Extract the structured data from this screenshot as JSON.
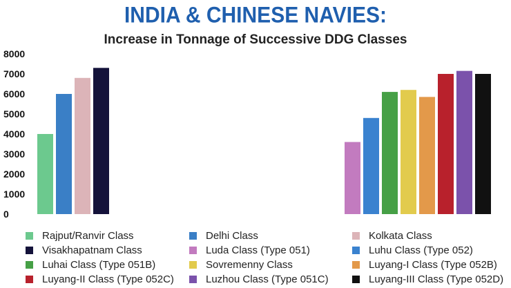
{
  "title": "INDIA & CHINESE NAVIES:",
  "subtitle": "Increase in Tonnage of Successive DDG Classes",
  "chart_data": {
    "type": "bar",
    "title": "INDIA & CHINESE NAVIES:",
    "subtitle": "Increase in Tonnage of Successive DDG Classes",
    "xlabel": "",
    "ylabel": "",
    "ylim": [
      0,
      8000
    ],
    "yticks": [
      0,
      1000,
      2000,
      3000,
      4000,
      5000,
      6000,
      7000,
      8000
    ],
    "grid": false,
    "legend_position": "bottom",
    "groups": [
      {
        "series": [
          {
            "name": "Rajput/Ranvir Class",
            "value": 4000,
            "color": "#6cc98e"
          },
          {
            "name": "Delhi Class",
            "value": 6000,
            "color": "#3a7fc6"
          },
          {
            "name": "Kolkata Class",
            "value": 6800,
            "color": "#dcb4b8"
          },
          {
            "name": "Visakhapatnam Class",
            "value": 7300,
            "color": "#14123a"
          }
        ]
      },
      {
        "series": [
          {
            "name": "Luda Class (Type 051)",
            "value": 3600,
            "color": "#c27bbf"
          },
          {
            "name": "Luhu Class (Type 052)",
            "value": 4800,
            "color": "#3a82cf"
          },
          {
            "name": "Luhai Class (Type 051B)",
            "value": 6100,
            "color": "#46a046"
          },
          {
            "name": "Sovremenny Class",
            "value": 6200,
            "color": "#e2cb4d"
          },
          {
            "name": "Luyang-I Class (Type 052B)",
            "value": 5850,
            "color": "#e3994a"
          },
          {
            "name": "Luyang-II Class (Type 052C)",
            "value": 7000,
            "color": "#b8212c"
          },
          {
            "name": "Luzhou Class (Type 051C)",
            "value": 7150,
            "color": "#7b52ab"
          },
          {
            "name": "Luyang-III Class (Type 052D)",
            "value": 7000,
            "color": "#111111"
          }
        ]
      }
    ]
  }
}
